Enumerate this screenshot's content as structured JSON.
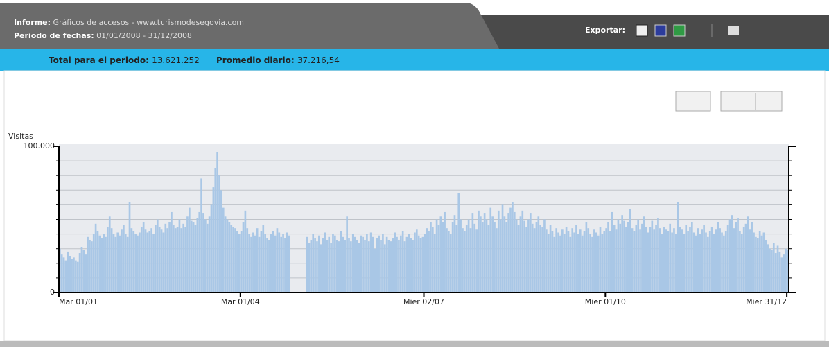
{
  "header": {
    "report_label": "Informe:",
    "report_title": "Gráficos de accesos - www.turismodesegovia.com",
    "period_label": "Periodo de fechas:",
    "period": "01/01/2008 - 31/12/2008",
    "export_label": "Exportar:"
  },
  "summary": {
    "total_label": "Total para el periodo:",
    "total": "13.621.252",
    "average_label": "Promedio diario:",
    "average": "37.216,54"
  },
  "chart_data": {
    "type": "bar",
    "y_label": "Visitas",
    "color": "#a9c7e6",
    "grid": true,
    "xlim": [
      0,
      366
    ],
    "xticks": [
      {
        "value": 0,
        "label": "Mar 01/01"
      },
      {
        "value": 91,
        "label": "Mar 01/04"
      },
      {
        "value": 183,
        "label": "Mier 02/07"
      },
      {
        "value": 274,
        "label": "Mier 01/10"
      },
      {
        "value": 365,
        "label": "Mier 31/12"
      }
    ],
    "ylim": [
      0,
      100000
    ],
    "yticks": [
      0,
      {
        "value": 100000,
        "label": "100.000"
      }
    ],
    "minor_yticks": [
      10000,
      20000,
      30000,
      40000,
      50000,
      60000,
      70000,
      80000,
      90000
    ],
    "values": [
      30000,
      26000,
      24000,
      22000,
      28000,
      25000,
      23000,
      24000,
      22000,
      21000,
      27000,
      31000,
      29000,
      26000,
      38000,
      36000,
      35000,
      40000,
      47000,
      42000,
      39000,
      37000,
      40000,
      38000,
      45000,
      52000,
      44000,
      40000,
      38000,
      41000,
      39000,
      43000,
      46000,
      40000,
      38000,
      62000,
      44000,
      42000,
      40000,
      39000,
      41000,
      45000,
      48000,
      43000,
      41000,
      42000,
      44000,
      40000,
      46000,
      50000,
      45000,
      43000,
      41000,
      47000,
      44000,
      48000,
      55000,
      46000,
      44000,
      45000,
      50000,
      44000,
      47000,
      45000,
      52000,
      58000,
      49000,
      48000,
      46000,
      51000,
      55000,
      78000,
      54000,
      50000,
      47000,
      52000,
      60000,
      72000,
      85000,
      96000,
      80000,
      70000,
      58000,
      52000,
      50000,
      48000,
      46000,
      45000,
      44000,
      42000,
      40000,
      42000,
      48000,
      56000,
      44000,
      40000,
      38000,
      41000,
      39000,
      44000,
      38000,
      42000,
      46000,
      40000,
      37000,
      36000,
      40000,
      42000,
      39000,
      44000,
      41000,
      38000,
      40000,
      37000,
      41000,
      39000,
      0,
      0,
      0,
      0,
      0,
      0,
      0,
      0,
      38000,
      34000,
      36000,
      40000,
      37000,
      35000,
      39000,
      33000,
      37000,
      41000,
      36000,
      38000,
      34000,
      40000,
      39000,
      36000,
      35000,
      42000,
      38000,
      36000,
      52000,
      37000,
      35000,
      40000,
      38000,
      36000,
      34000,
      39000,
      38000,
      36000,
      40000,
      35000,
      41000,
      38000,
      30000,
      37000,
      39000,
      36000,
      40000,
      33000,
      38000,
      36000,
      35000,
      37000,
      41000,
      38000,
      36000,
      39000,
      42000,
      35000,
      38000,
      40000,
      37000,
      36000,
      41000,
      43000,
      39000,
      37000,
      38000,
      40000,
      44000,
      42000,
      48000,
      45000,
      40000,
      50000,
      46000,
      52000,
      48000,
      55000,
      44000,
      42000,
      40000,
      48000,
      53000,
      46000,
      68000,
      50000,
      44000,
      42000,
      46000,
      50000,
      44000,
      54000,
      47000,
      43000,
      56000,
      52000,
      48000,
      54000,
      50000,
      46000,
      58000,
      52000,
      48000,
      44000,
      56000,
      50000,
      60000,
      52000,
      48000,
      54000,
      58000,
      62000,
      55000,
      50000,
      46000,
      52000,
      56000,
      49000,
      45000,
      50000,
      54000,
      47000,
      44000,
      48000,
      52000,
      46000,
      45000,
      50000,
      43000,
      40000,
      46000,
      42000,
      38000,
      44000,
      41000,
      39000,
      43000,
      40000,
      45000,
      42000,
      38000,
      44000,
      41000,
      46000,
      40000,
      43000,
      39000,
      42000,
      48000,
      44000,
      40000,
      38000,
      43000,
      41000,
      39000,
      45000,
      40000,
      42000,
      44000,
      48000,
      42000,
      55000,
      46000,
      43000,
      50000,
      47000,
      53000,
      49000,
      45000,
      48000,
      57000,
      44000,
      42000,
      46000,
      50000,
      43000,
      47000,
      52000,
      45000,
      41000,
      45000,
      49000,
      43000,
      46000,
      51000,
      44000,
      40000,
      45000,
      43000,
      42000,
      47000,
      41000,
      44000,
      40000,
      62000,
      45000,
      43000,
      40000,
      46000,
      42000,
      45000,
      48000,
      41000,
      39000,
      44000,
      40000,
      43000,
      46000,
      41000,
      38000,
      42000,
      45000,
      40000,
      43000,
      48000,
      44000,
      41000,
      39000,
      42000,
      46000,
      50000,
      53000,
      44000,
      48000,
      51000,
      42000,
      40000,
      45000,
      47000,
      52000,
      43000,
      48000,
      41000,
      38000,
      37000,
      42000,
      39000,
      41000,
      36000,
      33000,
      30000,
      29000,
      34000,
      27000,
      32000,
      28000,
      24000,
      26000,
      30000,
      29000
    ]
  }
}
